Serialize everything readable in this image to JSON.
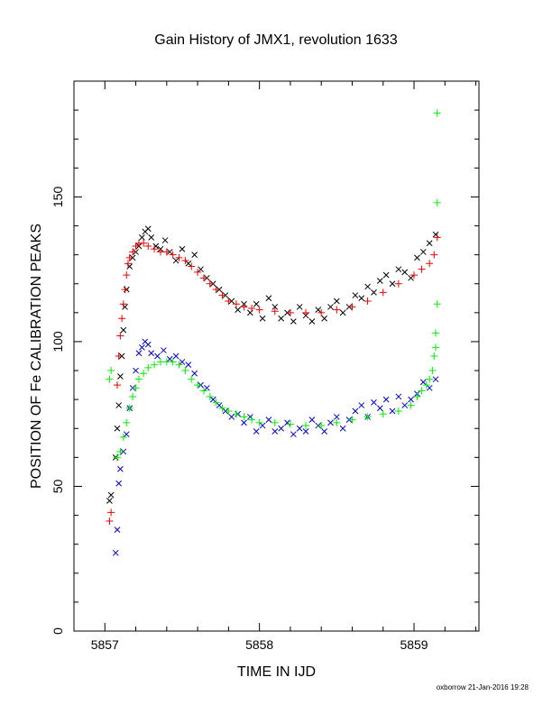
{
  "chart_data": {
    "type": "scatter",
    "title": "Gain History of JMX1, revolution 1633",
    "xlabel": "TIME IN IJD",
    "ylabel": "POSITION OF Fe CALIBRATION PEAKS",
    "xlim": [
      5856.8,
      5859.42
    ],
    "ylim": [
      0,
      190
    ],
    "xticks": [
      5857,
      5858,
      5859
    ],
    "yticks": [
      0,
      50,
      100,
      150
    ],
    "grid": false,
    "series": [
      {
        "color": "#000000",
        "marker": "x",
        "points": [
          [
            5857.03,
            45
          ],
          [
            5857.04,
            47
          ],
          [
            5857.07,
            60
          ],
          [
            5857.08,
            70
          ],
          [
            5857.09,
            78
          ],
          [
            5857.1,
            88
          ],
          [
            5857.11,
            95
          ],
          [
            5857.12,
            104
          ],
          [
            5857.13,
            112
          ],
          [
            5857.14,
            118
          ],
          [
            5857.16,
            126
          ],
          [
            5857.18,
            129
          ],
          [
            5857.2,
            131
          ],
          [
            5857.22,
            133
          ],
          [
            5857.24,
            136
          ],
          [
            5857.26,
            138
          ],
          [
            5857.28,
            139
          ],
          [
            5857.3,
            136
          ],
          [
            5857.33,
            133
          ],
          [
            5857.36,
            132
          ],
          [
            5857.39,
            135
          ],
          [
            5857.42,
            131
          ],
          [
            5857.46,
            128
          ],
          [
            5857.5,
            132
          ],
          [
            5857.54,
            127
          ],
          [
            5857.58,
            130
          ],
          [
            5857.62,
            125
          ],
          [
            5857.66,
            122
          ],
          [
            5857.7,
            120
          ],
          [
            5857.74,
            118
          ],
          [
            5857.78,
            116
          ],
          [
            5857.82,
            114
          ],
          [
            5857.86,
            111
          ],
          [
            5857.9,
            113
          ],
          [
            5857.94,
            110
          ],
          [
            5857.98,
            113
          ],
          [
            5858.02,
            108
          ],
          [
            5858.06,
            115
          ],
          [
            5858.1,
            112
          ],
          [
            5858.14,
            108
          ],
          [
            5858.18,
            110
          ],
          [
            5858.22,
            107
          ],
          [
            5858.26,
            112
          ],
          [
            5858.3,
            109
          ],
          [
            5858.34,
            107
          ],
          [
            5858.38,
            111
          ],
          [
            5858.42,
            108
          ],
          [
            5858.46,
            112
          ],
          [
            5858.5,
            114
          ],
          [
            5858.54,
            110
          ],
          [
            5858.58,
            112
          ],
          [
            5858.62,
            116
          ],
          [
            5858.66,
            115
          ],
          [
            5858.7,
            119
          ],
          [
            5858.74,
            117
          ],
          [
            5858.78,
            121
          ],
          [
            5858.82,
            123
          ],
          [
            5858.86,
            120
          ],
          [
            5858.9,
            125
          ],
          [
            5858.94,
            124
          ],
          [
            5858.98,
            122
          ],
          [
            5859.02,
            129
          ],
          [
            5859.06,
            131
          ],
          [
            5859.1,
            134
          ],
          [
            5859.14,
            137
          ]
        ]
      },
      {
        "color": "#0000cc",
        "marker": "x",
        "points": [
          [
            5857.07,
            27
          ],
          [
            5857.08,
            35
          ],
          [
            5857.09,
            51
          ],
          [
            5857.1,
            56
          ],
          [
            5857.12,
            62
          ],
          [
            5857.14,
            68
          ],
          [
            5857.16,
            77
          ],
          [
            5857.18,
            84
          ],
          [
            5857.2,
            90
          ],
          [
            5857.22,
            96
          ],
          [
            5857.24,
            98
          ],
          [
            5857.26,
            100
          ],
          [
            5857.28,
            99
          ],
          [
            5857.3,
            96
          ],
          [
            5857.34,
            95
          ],
          [
            5857.38,
            97
          ],
          [
            5857.42,
            94
          ],
          [
            5857.46,
            95
          ],
          [
            5857.5,
            93
          ],
          [
            5857.54,
            92
          ],
          [
            5857.58,
            89
          ],
          [
            5857.62,
            85
          ],
          [
            5857.66,
            84
          ],
          [
            5857.7,
            80
          ],
          [
            5857.74,
            78
          ],
          [
            5857.78,
            76
          ],
          [
            5857.82,
            74
          ],
          [
            5857.86,
            75
          ],
          [
            5857.9,
            72
          ],
          [
            5857.94,
            74
          ],
          [
            5857.98,
            69
          ],
          [
            5858.02,
            71
          ],
          [
            5858.06,
            73
          ],
          [
            5858.1,
            69
          ],
          [
            5858.14,
            70
          ],
          [
            5858.18,
            72
          ],
          [
            5858.22,
            68
          ],
          [
            5858.26,
            70
          ],
          [
            5858.3,
            69
          ],
          [
            5858.34,
            73
          ],
          [
            5858.38,
            71
          ],
          [
            5858.42,
            69
          ],
          [
            5858.46,
            72
          ],
          [
            5858.5,
            74
          ],
          [
            5858.54,
            70
          ],
          [
            5858.58,
            73
          ],
          [
            5858.62,
            76
          ],
          [
            5858.66,
            78
          ],
          [
            5858.7,
            74
          ],
          [
            5858.74,
            79
          ],
          [
            5858.78,
            77
          ],
          [
            5858.82,
            80
          ],
          [
            5858.86,
            76
          ],
          [
            5858.9,
            81
          ],
          [
            5858.94,
            78
          ],
          [
            5858.98,
            80
          ],
          [
            5859.02,
            82
          ],
          [
            5859.06,
            86
          ],
          [
            5859.1,
            84
          ],
          [
            5859.14,
            87
          ]
        ]
      },
      {
        "color": "#ee0000",
        "marker": "+",
        "points": [
          [
            5857.03,
            38
          ],
          [
            5857.04,
            41
          ],
          [
            5857.08,
            85
          ],
          [
            5857.09,
            95
          ],
          [
            5857.1,
            102
          ],
          [
            5857.11,
            108
          ],
          [
            5857.12,
            113
          ],
          [
            5857.13,
            118
          ],
          [
            5857.14,
            123
          ],
          [
            5857.15,
            127
          ],
          [
            5857.16,
            129
          ],
          [
            5857.18,
            131
          ],
          [
            5857.2,
            133
          ],
          [
            5857.22,
            134
          ],
          [
            5857.25,
            134
          ],
          [
            5857.28,
            133
          ],
          [
            5857.32,
            132
          ],
          [
            5857.36,
            131
          ],
          [
            5857.4,
            131
          ],
          [
            5857.44,
            130
          ],
          [
            5857.48,
            129
          ],
          [
            5857.52,
            128
          ],
          [
            5857.56,
            126
          ],
          [
            5857.6,
            124
          ],
          [
            5857.64,
            122
          ],
          [
            5857.68,
            120
          ],
          [
            5857.72,
            118
          ],
          [
            5857.76,
            116
          ],
          [
            5857.8,
            114
          ],
          [
            5857.85,
            113
          ],
          [
            5857.9,
            112
          ],
          [
            5857.95,
            111.5
          ],
          [
            5858.0,
            111
          ],
          [
            5858.1,
            110.5
          ],
          [
            5858.2,
            110
          ],
          [
            5858.3,
            110
          ],
          [
            5858.4,
            110
          ],
          [
            5858.5,
            111
          ],
          [
            5858.6,
            112
          ],
          [
            5858.7,
            114
          ],
          [
            5858.8,
            117
          ],
          [
            5858.9,
            120
          ],
          [
            5859.0,
            123
          ],
          [
            5859.05,
            125
          ],
          [
            5859.1,
            127
          ],
          [
            5859.13,
            130
          ],
          [
            5859.15,
            136
          ]
        ]
      },
      {
        "color": "#00ee00",
        "marker": "+",
        "points": [
          [
            5857.03,
            87
          ],
          [
            5857.04,
            90
          ],
          [
            5857.08,
            60
          ],
          [
            5857.1,
            62
          ],
          [
            5857.12,
            67
          ],
          [
            5857.14,
            72
          ],
          [
            5857.16,
            77
          ],
          [
            5857.18,
            81
          ],
          [
            5857.2,
            84
          ],
          [
            5857.22,
            87
          ],
          [
            5857.25,
            89
          ],
          [
            5857.28,
            91
          ],
          [
            5857.32,
            92
          ],
          [
            5857.36,
            93
          ],
          [
            5857.4,
            93
          ],
          [
            5857.44,
            93
          ],
          [
            5857.48,
            92
          ],
          [
            5857.52,
            90
          ],
          [
            5857.56,
            87
          ],
          [
            5857.6,
            85
          ],
          [
            5857.64,
            83
          ],
          [
            5857.68,
            81
          ],
          [
            5857.72,
            79
          ],
          [
            5857.76,
            77
          ],
          [
            5857.8,
            76
          ],
          [
            5857.85,
            75
          ],
          [
            5857.9,
            74
          ],
          [
            5857.95,
            73
          ],
          [
            5858.0,
            72
          ],
          [
            5858.1,
            72
          ],
          [
            5858.2,
            71.5
          ],
          [
            5858.3,
            71
          ],
          [
            5858.4,
            71
          ],
          [
            5858.5,
            72
          ],
          [
            5858.6,
            73
          ],
          [
            5858.7,
            74
          ],
          [
            5858.8,
            75
          ],
          [
            5858.9,
            76
          ],
          [
            5858.98,
            78
          ],
          [
            5859.02,
            81
          ],
          [
            5859.05,
            83
          ],
          [
            5859.08,
            85
          ],
          [
            5859.1,
            87
          ],
          [
            5859.12,
            90
          ],
          [
            5859.13,
            95
          ],
          [
            5859.14,
            98
          ],
          [
            5859.14,
            103
          ],
          [
            5859.15,
            113
          ],
          [
            5859.15,
            148
          ],
          [
            5859.15,
            179
          ]
        ]
      }
    ]
  },
  "footer": "oxborrow 21-Jan-2016 19:28"
}
